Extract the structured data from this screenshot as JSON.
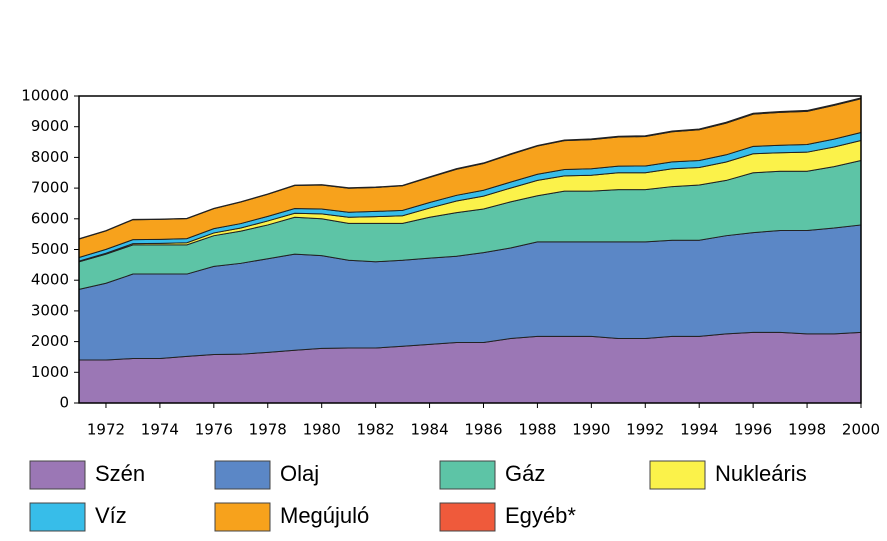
{
  "chart_data": {
    "type": "stacked-area",
    "x": [
      1971,
      1972,
      1973,
      1974,
      1975,
      1976,
      1977,
      1978,
      1979,
      1980,
      1981,
      1982,
      1983,
      1984,
      1985,
      1986,
      1987,
      1988,
      1989,
      1990,
      1991,
      1992,
      1993,
      1994,
      1995,
      1996,
      1997,
      1998,
      1999,
      2000
    ],
    "xlim": [
      1971,
      2000
    ],
    "xticks": [
      1972,
      1974,
      1976,
      1978,
      1980,
      1982,
      1984,
      1986,
      1988,
      1990,
      1992,
      1994,
      1996,
      1998,
      2000
    ],
    "ylim": [
      0,
      10000
    ],
    "yticks": [
      0,
      1000,
      2000,
      3000,
      4000,
      5000,
      6000,
      7000,
      8000,
      9000,
      10000
    ],
    "series": [
      {
        "name": "Szén",
        "color": "#9b77b5",
        "values": [
          1400,
          1400,
          1450,
          1450,
          1520,
          1580,
          1590,
          1650,
          1720,
          1780,
          1790,
          1790,
          1850,
          1910,
          1970,
          1970,
          2100,
          2170,
          2170,
          2170,
          2100,
          2100,
          2170,
          2170,
          2250,
          2300,
          2300,
          2250,
          2250,
          2300
        ]
      },
      {
        "name": "Olaj",
        "color": "#5b87c6",
        "values": [
          2300,
          2500,
          2750,
          2750,
          2680,
          2870,
          2960,
          3050,
          3130,
          3020,
          2860,
          2810,
          2800,
          2810,
          2810,
          2930,
          2950,
          3080,
          3080,
          3080,
          3150,
          3150,
          3130,
          3130,
          3200,
          3250,
          3320,
          3370,
          3450,
          3500
        ]
      },
      {
        "name": "Gáz",
        "color": "#5dc4a6",
        "values": [
          900,
          950,
          950,
          950,
          950,
          1000,
          1050,
          1100,
          1200,
          1200,
          1200,
          1250,
          1200,
          1330,
          1420,
          1420,
          1500,
          1500,
          1650,
          1650,
          1700,
          1700,
          1750,
          1800,
          1800,
          1950,
          1930,
          1930,
          2000,
          2100
        ]
      },
      {
        "name": "Nukleáris",
        "color": "#fbf24a",
        "values": [
          20,
          30,
          40,
          50,
          70,
          90,
          100,
          130,
          130,
          160,
          200,
          220,
          250,
          300,
          380,
          420,
          450,
          500,
          500,
          520,
          550,
          550,
          580,
          570,
          600,
          620,
          600,
          620,
          640,
          650
        ]
      },
      {
        "name": "Víz",
        "color": "#37bde9",
        "values": [
          120,
          125,
          130,
          130,
          135,
          140,
          145,
          150,
          155,
          160,
          165,
          170,
          175,
          180,
          185,
          190,
          195,
          200,
          205,
          210,
          215,
          220,
          225,
          230,
          235,
          240,
          245,
          250,
          255,
          260
        ]
      },
      {
        "name": "Megújuló",
        "color": "#f7a21c",
        "values": [
          600,
          600,
          650,
          650,
          650,
          650,
          700,
          720,
          750,
          780,
          780,
          780,
          800,
          820,
          850,
          870,
          900,
          920,
          940,
          950,
          950,
          960,
          980,
          1000,
          1030,
          1050,
          1070,
          1080,
          1100,
          1100
        ]
      },
      {
        "name": "Egyéb*",
        "color": "#ef5a3b",
        "values": [
          10,
          10,
          10,
          10,
          10,
          10,
          10,
          10,
          10,
          15,
          15,
          15,
          15,
          15,
          20,
          20,
          20,
          20,
          20,
          25,
          25,
          25,
          25,
          25,
          30,
          30,
          30,
          30,
          30,
          30
        ]
      }
    ]
  }
}
